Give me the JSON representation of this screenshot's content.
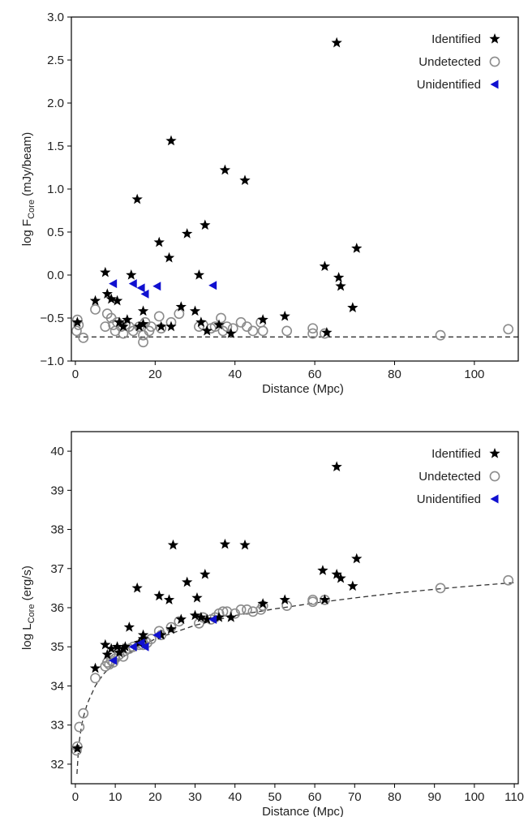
{
  "chart_data": [
    {
      "type": "scatter",
      "xlabel": "Distance (Mpc)",
      "ylabel_prefix": "log F",
      "ylabel_sub": "Core",
      "ylabel_suffix": " (mJy/beam)",
      "xlim": [
        -1,
        111
      ],
      "ylim": [
        -1.0,
        3.0
      ],
      "xticks": [
        0,
        20,
        40,
        60,
        80,
        100
      ],
      "yticks": [
        -1.0,
        -0.5,
        0.0,
        0.5,
        1.0,
        1.5,
        2.0,
        2.5,
        3.0
      ],
      "ytick_labels": [
        "−1.0",
        "−0.5",
        "0.0",
        "0.5",
        "1.0",
        "1.5",
        "2.0",
        "2.5",
        "3.0"
      ],
      "legend_position": "top-right",
      "series": [
        {
          "name": "Identified",
          "marker": "star",
          "color": "#000000",
          "x": [
            0.5,
            5,
            7.5,
            8,
            9,
            10.5,
            11,
            12,
            13,
            14,
            15.5,
            16,
            17,
            17,
            21,
            21.5,
            23.5,
            24,
            24,
            26.5,
            28,
            30,
            31,
            31.5,
            32.5,
            33,
            36,
            37.5,
            39,
            42.5,
            47,
            52.5,
            62.5,
            63,
            65.5,
            66,
            66.5,
            69.5,
            70.5
          ],
          "y": [
            -0.55,
            -0.3,
            0.03,
            -0.22,
            -0.28,
            -0.3,
            -0.55,
            -0.6,
            -0.52,
            0.0,
            0.88,
            -0.6,
            -0.42,
            -0.57,
            0.38,
            -0.6,
            0.2,
            -0.6,
            1.56,
            -0.37,
            0.48,
            -0.42,
            0.0,
            -0.55,
            0.58,
            -0.65,
            -0.58,
            1.22,
            -0.68,
            1.1,
            -0.52,
            -0.48,
            0.1,
            -0.67,
            2.7,
            -0.03,
            -0.13,
            -0.38,
            0.31
          ]
        },
        {
          "name": "Undetected",
          "marker": "circle",
          "color": "#8c8c8c",
          "x": [
            0.3,
            0.5,
            0.8,
            2,
            5,
            7.5,
            8,
            9,
            9.5,
            10,
            10.5,
            11.5,
            12,
            12.5,
            13.5,
            14.5,
            16,
            17,
            17,
            17.5,
            18.5,
            19,
            21,
            21.5,
            24,
            26,
            31,
            32,
            34,
            35,
            36.5,
            37,
            38,
            39.5,
            41.5,
            43,
            44.5,
            46.5,
            47,
            53,
            59.5,
            59.5,
            62.5,
            91.5,
            108.5
          ],
          "y": [
            -0.65,
            -0.52,
            -0.58,
            -0.73,
            -0.4,
            -0.6,
            -0.45,
            -0.5,
            -0.58,
            -0.65,
            -0.55,
            -0.6,
            -0.68,
            -0.58,
            -0.6,
            -0.65,
            -0.6,
            -0.7,
            -0.78,
            -0.55,
            -0.65,
            -0.6,
            -0.48,
            -0.62,
            -0.55,
            -0.45,
            -0.6,
            -0.58,
            -0.62,
            -0.6,
            -0.5,
            -0.65,
            -0.6,
            -0.62,
            -0.55,
            -0.6,
            -0.65,
            -0.55,
            -0.65,
            -0.65,
            -0.62,
            -0.68,
            -0.68,
            -0.7,
            -0.63
          ]
        },
        {
          "name": "Unidentified",
          "marker": "triangle-left",
          "color": "#1010d0",
          "x": [
            9.5,
            14.5,
            16.5,
            17.5,
            20.5,
            34.5
          ],
          "y": [
            -0.1,
            -0.1,
            -0.15,
            -0.22,
            -0.13,
            -0.12
          ]
        }
      ],
      "reference_line": {
        "style": "dashed",
        "color": "#333333",
        "y": -0.72
      }
    },
    {
      "type": "scatter",
      "xlabel": "Distance (Mpc)",
      "ylabel_prefix": "log L",
      "ylabel_sub": "Core",
      "ylabel_suffix": " (erg/s)",
      "xlim": [
        -1,
        111
      ],
      "ylim": [
        31.5,
        40.5
      ],
      "xticks": [
        0,
        10,
        20,
        30,
        40,
        50,
        60,
        70,
        80,
        90,
        100,
        110
      ],
      "yticks": [
        32,
        33,
        34,
        35,
        36,
        37,
        38,
        39,
        40
      ],
      "ytick_labels": [
        "32",
        "33",
        "34",
        "35",
        "36",
        "37",
        "38",
        "39",
        "40"
      ],
      "legend_position": "top-right",
      "series": [
        {
          "name": "Identified",
          "marker": "star",
          "color": "#000000",
          "x": [
            0.5,
            5,
            7.5,
            8,
            9,
            10.5,
            11,
            12,
            12.5,
            13.5,
            15.5,
            16,
            17,
            17,
            21,
            21.5,
            23.5,
            24,
            24.5,
            26.5,
            28,
            30,
            30.5,
            31.5,
            32.5,
            33,
            36,
            37.5,
            39,
            42.5,
            47,
            52.5,
            62,
            62.5,
            65.5,
            65.5,
            66.5,
            69.5,
            70.5
          ],
          "y": [
            32.4,
            34.45,
            35.05,
            34.8,
            34.95,
            35.0,
            34.85,
            34.95,
            35.0,
            35.5,
            36.5,
            35.1,
            35.3,
            35.2,
            36.3,
            35.3,
            36.2,
            35.45,
            37.6,
            35.7,
            36.65,
            35.8,
            36.25,
            35.75,
            36.85,
            35.7,
            35.75,
            37.62,
            35.75,
            37.6,
            36.1,
            36.2,
            36.95,
            36.2,
            39.6,
            36.85,
            36.75,
            36.55,
            37.25
          ]
        },
        {
          "name": "Undetected",
          "marker": "circle",
          "color": "#8c8c8c",
          "x": [
            0.3,
            0.5,
            1.0,
            2,
            5,
            7.5,
            8,
            8.5,
            9,
            9.5,
            10,
            11,
            12,
            12.5,
            13.5,
            14.5,
            16,
            17,
            17.5,
            18,
            19,
            21,
            21.5,
            24,
            26,
            31,
            32,
            34,
            35,
            36,
            37,
            38,
            40,
            41.5,
            43,
            44.5,
            46.5,
            47,
            53,
            59.5,
            59.5,
            62.5,
            91.5,
            108.5
          ],
          "y": [
            32.35,
            32.45,
            32.95,
            33.3,
            34.2,
            34.5,
            34.6,
            34.55,
            34.65,
            34.6,
            34.7,
            34.8,
            34.75,
            34.9,
            34.95,
            35.0,
            35.05,
            35.05,
            35.15,
            35.1,
            35.2,
            35.4,
            35.3,
            35.5,
            35.65,
            35.6,
            35.75,
            35.7,
            35.75,
            35.85,
            35.9,
            35.9,
            35.85,
            35.95,
            35.95,
            35.9,
            35.95,
            36.05,
            36.05,
            36.15,
            36.2,
            36.2,
            36.5,
            36.7
          ]
        },
        {
          "name": "Unidentified",
          "marker": "triangle-left",
          "color": "#1010d0",
          "x": [
            9.5,
            14.5,
            16.5,
            17.5,
            20.5,
            34.5
          ],
          "y": [
            34.65,
            35.0,
            35.1,
            35.0,
            35.3,
            35.7
          ]
        }
      ],
      "reference_line": {
        "style": "dashed",
        "color": "#333333",
        "shape": "log-curve",
        "x": [
          0.4,
          0.7,
          1,
          1.5,
          2,
          3,
          5,
          7,
          10,
          15,
          20,
          30,
          40,
          50,
          60,
          70,
          80,
          90,
          100,
          110
        ],
        "y": [
          31.75,
          32.25,
          32.6,
          32.95,
          33.2,
          33.55,
          34.0,
          34.3,
          34.6,
          34.95,
          35.2,
          35.55,
          35.8,
          35.97,
          36.12,
          36.25,
          36.37,
          36.47,
          36.56,
          36.64
        ]
      }
    }
  ]
}
